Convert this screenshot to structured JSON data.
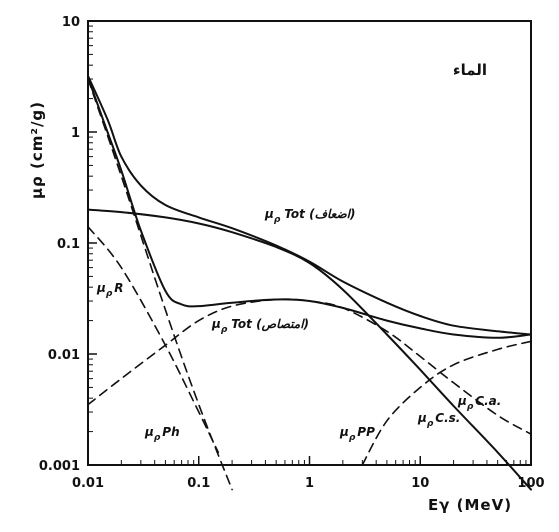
{
  "chart_data": {
    "type": "line",
    "title": "الماء",
    "xlabel": "Eγ (MeV)",
    "ylabel": "μρ (cm²/g)",
    "xscale": "log",
    "yscale": "log",
    "xlim": [
      0.01,
      100
    ],
    "ylim": [
      0.001,
      10
    ],
    "grid": false,
    "x_ticks": [
      "0.01",
      "0.1",
      "1",
      "10",
      "100"
    ],
    "y_ticks": [
      "0.001",
      "0.01",
      "0.1",
      "1",
      "10"
    ],
    "series": [
      {
        "name": "μρ Tot (اضعاف)",
        "style": "solid",
        "x": [
          0.01,
          0.015,
          0.02,
          0.03,
          0.05,
          0.1,
          0.2,
          0.5,
          1,
          2,
          5,
          10,
          20,
          50,
          100
        ],
        "y": [
          3.2,
          1.3,
          0.6,
          0.33,
          0.22,
          0.17,
          0.136,
          0.095,
          0.068,
          0.045,
          0.029,
          0.022,
          0.018,
          0.016,
          0.015
        ]
      },
      {
        "name": "μρ Tot (امتصاص)",
        "style": "solid",
        "x": [
          0.01,
          0.015,
          0.02,
          0.03,
          0.05,
          0.07,
          0.1,
          0.2,
          0.5,
          1,
          2,
          5,
          10,
          20,
          50,
          100
        ],
        "y": [
          3.1,
          1.0,
          0.45,
          0.13,
          0.037,
          0.028,
          0.027,
          0.029,
          0.031,
          0.03,
          0.026,
          0.02,
          0.017,
          0.015,
          0.014,
          0.015
        ]
      },
      {
        "name": "μρ C.s.",
        "style": "solid",
        "x": [
          0.01,
          0.02,
          0.05,
          0.1,
          0.2,
          0.5,
          1,
          2,
          5,
          10,
          20,
          50,
          100
        ],
        "y": [
          0.2,
          0.19,
          0.17,
          0.15,
          0.125,
          0.092,
          0.066,
          0.038,
          0.015,
          0.0072,
          0.0034,
          0.0013,
          0.0006
        ]
      },
      {
        "name": "μρ R",
        "style": "dashed",
        "x": [
          0.01,
          0.02,
          0.05,
          0.1,
          0.15
        ],
        "y": [
          0.14,
          0.06,
          0.012,
          0.003,
          0.0013
        ]
      },
      {
        "name": "μρ Ph",
        "style": "dashed",
        "x": [
          0.01,
          0.02,
          0.05,
          0.1,
          0.2
        ],
        "y": [
          3.0,
          0.4,
          0.025,
          0.0035,
          0.0006
        ]
      },
      {
        "name": "μρ C.a.",
        "style": "dashed",
        "x": [
          0.01,
          0.02,
          0.05,
          0.1,
          0.2,
          0.5,
          1,
          2,
          5,
          10,
          20,
          50,
          100
        ],
        "y": [
          0.0035,
          0.006,
          0.012,
          0.02,
          0.027,
          0.031,
          0.03,
          0.026,
          0.016,
          0.0095,
          0.0055,
          0.0028,
          0.0019
        ]
      },
      {
        "name": "μρ PP",
        "style": "dashed",
        "x": [
          3,
          5,
          10,
          20,
          50,
          100
        ],
        "y": [
          0.001,
          0.0025,
          0.005,
          0.008,
          0.011,
          0.013
        ]
      }
    ],
    "labels": {
      "tot_scatter": "Tot (اضعاف)",
      "tot_absorb": "Tot (امتصاص)",
      "r": "R",
      "ph": "Ph",
      "pp": "PP",
      "cs": "C.s.",
      "ca": "C.a."
    }
  }
}
